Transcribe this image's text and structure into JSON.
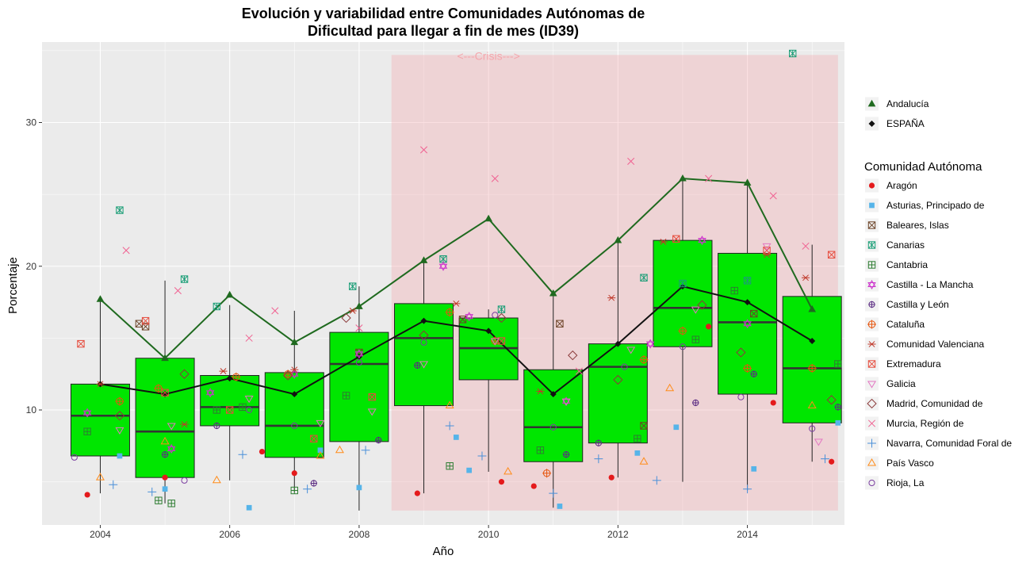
{
  "chart_data": {
    "type": "box",
    "title_line1": "Evolución y variabilidad entre Comunidades Autónomas de",
    "title_line2": "Dificultad para llegar a fin de mes (ID39)",
    "xlabel": "Año",
    "ylabel": "Porcentaje",
    "xlim": [
      2003.1,
      2015.5
    ],
    "ylim": [
      2.0,
      35.6
    ],
    "x_ticks": [
      2004,
      2006,
      2008,
      2010,
      2012,
      2014
    ],
    "y_ticks": [
      10,
      20,
      30
    ],
    "crisis": {
      "x_start": 2008.5,
      "x_end": 2015.4,
      "y_start": 3.0,
      "y_end": 34.7,
      "label": "<---Crisis--->",
      "label_x": 2010.0,
      "label_y": 34.7,
      "color": "#f4a6ac"
    },
    "boxes": [
      {
        "x": 2004,
        "q1": 6.8,
        "median": 9.6,
        "q3": 11.8,
        "low": 4.2,
        "high": 17.7
      },
      {
        "x": 2005,
        "q1": 5.3,
        "median": 8.5,
        "q3": 13.6,
        "low": 3.5,
        "high": 19.0
      },
      {
        "x": 2006,
        "q1": 8.9,
        "median": 10.2,
        "q3": 12.4,
        "low": 5.1,
        "high": 17.3
      },
      {
        "x": 2007,
        "q1": 6.7,
        "median": 8.9,
        "q3": 12.6,
        "low": 4.3,
        "high": 16.9
      },
      {
        "x": 2008,
        "q1": 7.8,
        "median": 13.2,
        "q3": 15.4,
        "low": 3.0,
        "high": 18.6
      },
      {
        "x": 2009,
        "q1": 10.3,
        "median": 15.0,
        "q3": 17.4,
        "low": 4.2,
        "high": 20.6
      },
      {
        "x": 2010,
        "q1": 12.1,
        "median": 14.3,
        "q3": 16.4,
        "low": 5.7,
        "high": 17.0
      },
      {
        "x": 2011,
        "q1": 6.4,
        "median": 8.8,
        "q3": 12.8,
        "low": 3.2,
        "high": 18.1
      },
      {
        "x": 2012,
        "q1": 7.7,
        "median": 13.0,
        "q3": 14.6,
        "low": 5.3,
        "high": 21.8
      },
      {
        "x": 2013,
        "q1": 14.4,
        "median": 17.1,
        "q3": 21.8,
        "low": 5.0,
        "high": 26.1
      },
      {
        "x": 2014,
        "q1": 11.1,
        "median": 16.1,
        "q3": 20.9,
        "low": 4.4,
        "high": 25.8
      },
      {
        "x": 2015,
        "q1": 9.1,
        "median": 12.9,
        "q3": 17.9,
        "low": 6.4,
        "high": 21.5
      }
    ],
    "lines": [
      {
        "name": "Andalucía",
        "color": "#1f6a1f",
        "marker": "triangle",
        "x": [
          2004,
          2005,
          2006,
          2007,
          2008,
          2009,
          2010,
          2011,
          2012,
          2013,
          2014,
          2015
        ],
        "values": [
          17.7,
          13.6,
          18.0,
          14.7,
          17.2,
          20.4,
          23.3,
          18.1,
          21.8,
          26.1,
          25.8,
          17.0
        ]
      },
      {
        "name": "ESPAÑA",
        "color": "#111111",
        "marker": "diamond",
        "x": [
          2004,
          2005,
          2006,
          2007,
          2008,
          2009,
          2010,
          2011,
          2012,
          2013,
          2014,
          2015
        ],
        "values": [
          11.8,
          11.1,
          12.2,
          11.1,
          13.7,
          16.2,
          15.5,
          11.1,
          14.6,
          18.6,
          17.5,
          14.8
        ]
      }
    ],
    "legend_top": [
      {
        "label": "Andalucía",
        "color": "#1f6a1f",
        "marker": "triangle"
      },
      {
        "label": "ESPAÑA",
        "color": "#111111",
        "marker": "diamond"
      }
    ],
    "legend_title": "Comunidad Autónoma",
    "series": [
      {
        "name": "Aragón",
        "color": "#e41a1c",
        "marker": "circle-filled",
        "x": [
          2003.8,
          2005.0,
          2006.5,
          2007.0,
          2008.9,
          2010.2,
          2010.7,
          2011.9,
          2013.4,
          2014.4,
          2015.3
        ],
        "values": [
          4.1,
          5.3,
          7.1,
          5.6,
          4.2,
          5.0,
          4.7,
          5.3,
          15.8,
          10.5,
          6.4
        ]
      },
      {
        "name": "Asturias, Principado de",
        "color": "#56b4e9",
        "marker": "square-filled",
        "x": [
          2004.3,
          2005.0,
          2006.3,
          2007.4,
          2008.0,
          2009.5,
          2009.7,
          2011.1,
          2012.3,
          2012.9,
          2014.1,
          2015.4
        ],
        "values": [
          6.8,
          4.5,
          3.2,
          7.2,
          4.6,
          8.1,
          5.8,
          3.3,
          7.0,
          8.8,
          5.9,
          9.1
        ]
      },
      {
        "name": "Baleares, Islas",
        "color": "#6b4226",
        "marker": "square-x",
        "x": [
          2004.6,
          2004.7,
          2008.0,
          2009.6,
          2011.1,
          2012.4,
          2014.1
        ],
        "values": [
          16.0,
          15.8,
          14.0,
          16.3,
          16.0,
          8.9,
          16.7
        ]
      },
      {
        "name": "Canarias",
        "color": "#1b9e77",
        "marker": "square-xx",
        "x": [
          2004.3,
          2005.3,
          2005.8,
          2007.9,
          2009.3,
          2010.2,
          2012.4,
          2013.0,
          2014.0,
          2014.7
        ],
        "values": [
          23.9,
          19.1,
          17.2,
          18.6,
          20.5,
          17.0,
          19.2,
          18.8,
          19.0,
          34.8
        ]
      },
      {
        "name": "Cantabria",
        "color": "#2e7d32",
        "marker": "square-plus",
        "x": [
          2003.8,
          2004.9,
          2005.1,
          2005.8,
          2006.2,
          2007.0,
          2007.8,
          2009.4,
          2010.8,
          2012.3,
          2013.2,
          2013.8,
          2015.4
        ],
        "values": [
          8.5,
          3.7,
          3.5,
          10.0,
          10.2,
          4.4,
          11.0,
          6.1,
          7.2,
          8.0,
          14.9,
          18.3,
          13.2
        ]
      },
      {
        "name": "Castilla - La Mancha",
        "color": "#cc33cc",
        "marker": "hexagram",
        "x": [
          2003.8,
          2005.1,
          2005.7,
          2007.0,
          2008.0,
          2009.3,
          2009.7,
          2011.2,
          2012.5,
          2013.3,
          2014.0
        ],
        "values": [
          9.8,
          7.3,
          11.2,
          12.5,
          13.9,
          20.0,
          16.5,
          10.6,
          14.6,
          21.8,
          16.0
        ]
      },
      {
        "name": "Castilla y León",
        "color": "#5b2c83",
        "marker": "circle-plus",
        "x": [
          2005.0,
          2005.8,
          2007.3,
          2008.3,
          2008.9,
          2011.2,
          2011.7,
          2013.2,
          2014.1,
          2015.4
        ],
        "values": [
          6.9,
          8.9,
          4.9,
          7.9,
          13.1,
          6.9,
          7.7,
          10.5,
          12.5,
          10.2
        ]
      },
      {
        "name": "Cataluña",
        "color": "#e6550d",
        "marker": "circle-cross",
        "x": [
          2004.3,
          2004.9,
          2006.1,
          2006.9,
          2009.4,
          2010.1,
          2010.9,
          2012.4,
          2013.0,
          2014.0,
          2015.0
        ],
        "values": [
          10.6,
          11.5,
          12.3,
          12.5,
          16.8,
          14.8,
          5.6,
          13.5,
          15.5,
          12.9,
          12.9
        ]
      },
      {
        "name": "Comunidad Valenciana",
        "color": "#c0392b",
        "marker": "asterisk",
        "x": [
          2004.0,
          2005.3,
          2005.9,
          2007.0,
          2007.9,
          2009.5,
          2010.8,
          2011.9,
          2012.7,
          2014.3,
          2014.9
        ],
        "values": [
          11.8,
          9.0,
          12.7,
          12.8,
          16.9,
          17.4,
          11.3,
          17.8,
          21.7,
          20.8,
          19.2
        ]
      },
      {
        "name": "Extremadura",
        "color": "#e64b3c",
        "marker": "square-x",
        "x": [
          2003.7,
          2004.7,
          2005.0,
          2006.0,
          2007.3,
          2008.2,
          2010.2,
          2012.9,
          2014.3,
          2015.3
        ],
        "values": [
          14.6,
          16.2,
          11.2,
          10.0,
          8.0,
          10.9,
          14.8,
          21.9,
          21.1,
          20.8
        ]
      },
      {
        "name": "Galicia",
        "color": "#e377c2",
        "marker": "triangle-down",
        "x": [
          2004.3,
          2005.1,
          2006.3,
          2007.4,
          2008.2,
          2009.0,
          2010.1,
          2011.2,
          2012.2,
          2013.2,
          2014.3,
          2015.1
        ],
        "values": [
          8.6,
          8.9,
          10.8,
          9.1,
          9.9,
          13.2,
          14.8,
          10.6,
          14.2,
          17.0,
          21.4,
          7.8
        ]
      },
      {
        "name": "Madrid, Comunidad de",
        "color": "#8b3a3a",
        "marker": "diamond-open",
        "x": [
          2004.3,
          2005.3,
          2006.9,
          2007.8,
          2009.0,
          2010.2,
          2011.3,
          2012.0,
          2013.3,
          2013.9,
          2015.3
        ],
        "values": [
          9.6,
          12.5,
          12.4,
          16.4,
          15.2,
          16.4,
          13.8,
          12.1,
          17.3,
          14.0,
          10.7
        ]
      },
      {
        "name": "Murcia, Región de",
        "color": "#f06292",
        "marker": "x",
        "x": [
          2004.4,
          2005.2,
          2006.3,
          2006.7,
          2008.0,
          2009.0,
          2010.1,
          2011.4,
          2012.2,
          2013.4,
          2014.4,
          2014.9
        ],
        "values": [
          21.1,
          18.3,
          15.0,
          16.9,
          15.7,
          28.1,
          26.1,
          12.7,
          27.3,
          26.1,
          24.9,
          21.4
        ]
      },
      {
        "name": "Navarra, Comunidad Foral de",
        "color": "#4a90d9",
        "marker": "plus",
        "x": [
          2004.2,
          2004.8,
          2006.2,
          2007.2,
          2008.1,
          2009.4,
          2009.9,
          2011.0,
          2011.7,
          2012.6,
          2014.0,
          2015.2
        ],
        "values": [
          4.8,
          4.3,
          6.9,
          4.5,
          7.2,
          8.9,
          6.8,
          4.2,
          6.6,
          5.1,
          4.5,
          6.6
        ]
      },
      {
        "name": "País Vasco",
        "color": "#ff8c1a",
        "marker": "triangle-open",
        "x": [
          2004.0,
          2005.0,
          2005.8,
          2007.4,
          2007.7,
          2009.4,
          2010.3,
          2012.4,
          2012.8,
          2015.0
        ],
        "values": [
          5.3,
          7.8,
          5.1,
          6.8,
          7.2,
          10.3,
          5.7,
          6.4,
          11.5,
          10.3
        ]
      },
      {
        "name": "Rioja, La",
        "color": "#7b3fa0",
        "marker": "circle-open",
        "x": [
          2003.6,
          2005.3,
          2006.3,
          2007.0,
          2008.0,
          2009.0,
          2010.1,
          2011.0,
          2012.1,
          2013.0,
          2013.9,
          2015.0
        ],
        "values": [
          6.7,
          5.1,
          10.0,
          8.9,
          13.3,
          14.7,
          16.6,
          8.8,
          13.0,
          14.4,
          10.9,
          8.7
        ]
      }
    ]
  }
}
